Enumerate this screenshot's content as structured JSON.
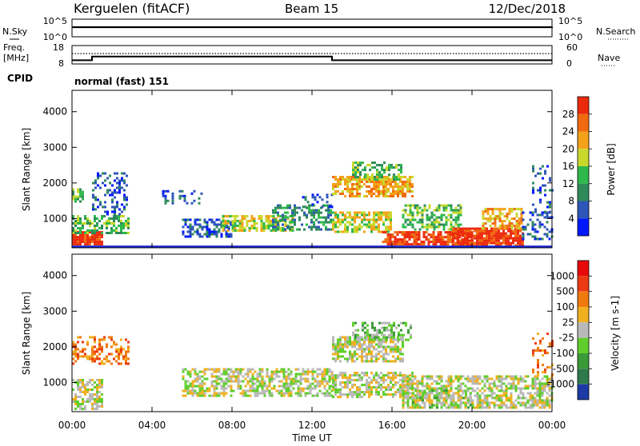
{
  "header": {
    "station": "Kerguelen (fitACF)",
    "beam": "Beam 15",
    "date": "12/Dec/2018"
  },
  "noise_panel": {
    "left_label": "N.Sky",
    "right_label": "N.Search",
    "left_ticks": [
      "10^5",
      "10^0"
    ],
    "right_ticks": [
      "10^5",
      "10^0"
    ]
  },
  "freq_panel": {
    "left_label_1": "Freq.",
    "left_label_2": "[MHz]",
    "right_label": "Nave",
    "left_ticks": [
      "18",
      "8"
    ],
    "right_ticks": [
      "60",
      "0"
    ],
    "freq_series": [
      {
        "t": 0,
        "v": 10
      },
      {
        "t": 1,
        "v": 10
      },
      {
        "t": 1,
        "v": 12
      },
      {
        "t": 13,
        "v": 12
      },
      {
        "t": 13,
        "v": 10
      },
      {
        "t": 24,
        "v": 10
      }
    ]
  },
  "cpid": {
    "label": "CPID",
    "mode": "normal (fast) 151"
  },
  "chart_data": [
    {
      "type": "heatmap",
      "name": "Power",
      "ylabel": "Slant Range [km]",
      "xlabel": "Time UT",
      "ylim": [
        180,
        4600
      ],
      "xlim": [
        0,
        24
      ],
      "y_ticks": [
        "1000",
        "2000",
        "3000",
        "4000"
      ],
      "colorbar_label": "Power [dB]",
      "colorbar_ticks": [
        "28",
        "24",
        "20",
        "16",
        "12",
        "8",
        "4"
      ],
      "colorbar_colors": [
        "#0018ff",
        "#2e55b8",
        "#2f8a5a",
        "#2fb84c",
        "#c8d92c",
        "#f5a21b",
        "#f06a10",
        "#ec2a0c"
      ],
      "regions": [
        {
          "t0": 0.0,
          "t1": 1.5,
          "r0": 250,
          "r1": 650,
          "level": 7,
          "density": 0.9
        },
        {
          "t0": 0.0,
          "t1": 2.8,
          "r0": 600,
          "r1": 1100,
          "level": 3,
          "density": 0.6
        },
        {
          "t0": 0.0,
          "t1": 0.6,
          "r0": 1500,
          "r1": 1850,
          "level": 3,
          "density": 0.6
        },
        {
          "t0": 1.0,
          "t1": 2.8,
          "r0": 1100,
          "r1": 2300,
          "level": 1,
          "density": 0.35
        },
        {
          "t0": 4.5,
          "t1": 6.5,
          "r0": 1400,
          "r1": 1800,
          "level": 1,
          "density": 0.3
        },
        {
          "t0": 5.5,
          "t1": 8.0,
          "r0": 500,
          "r1": 1000,
          "level": 1,
          "density": 0.55
        },
        {
          "t0": 7.5,
          "t1": 11.0,
          "r0": 650,
          "r1": 1100,
          "level": 4,
          "density": 0.7
        },
        {
          "t0": 10.0,
          "t1": 13.0,
          "r0": 700,
          "r1": 1400,
          "level": 2,
          "density": 0.5
        },
        {
          "t0": 11.5,
          "t1": 13.0,
          "r0": 1300,
          "r1": 1700,
          "level": 1,
          "density": 0.35
        },
        {
          "t0": 13.0,
          "t1": 16.0,
          "r0": 600,
          "r1": 1200,
          "level": 4,
          "density": 0.7
        },
        {
          "t0": 13.0,
          "t1": 17.0,
          "r0": 1600,
          "r1": 2200,
          "level": 5,
          "density": 0.75
        },
        {
          "t0": 14.0,
          "t1": 16.5,
          "r0": 2100,
          "r1": 2600,
          "level": 3,
          "density": 0.5
        },
        {
          "t0": 16.5,
          "t1": 19.5,
          "r0": 700,
          "r1": 1400,
          "level": 3,
          "density": 0.55
        },
        {
          "t0": 15.5,
          "t1": 20.0,
          "r0": 300,
          "r1": 650,
          "level": 7,
          "density": 0.75
        },
        {
          "t0": 19.0,
          "t1": 22.5,
          "r0": 250,
          "r1": 750,
          "level": 7,
          "density": 0.85
        },
        {
          "t0": 20.5,
          "t1": 22.5,
          "r0": 700,
          "r1": 1300,
          "level": 5,
          "density": 0.6
        },
        {
          "t0": 22.5,
          "t1": 24.0,
          "r0": 400,
          "r1": 1200,
          "level": 1,
          "density": 0.4
        },
        {
          "t0": 23.0,
          "t1": 24.0,
          "r0": 1200,
          "r1": 2500,
          "level": 1,
          "density": 0.2
        }
      ]
    },
    {
      "type": "heatmap",
      "name": "Velocity",
      "ylabel": "Slant Range [km]",
      "xlabel": "Time UT",
      "ylim": [
        180,
        4600
      ],
      "xlim": [
        0,
        24
      ],
      "y_ticks": [
        "1000",
        "2000",
        "3000",
        "4000"
      ],
      "x_ticks": [
        "00:00",
        "04:00",
        "08:00",
        "12:00",
        "16:00",
        "20:00",
        "00:00"
      ],
      "colorbar_label": "Velocity [m s-1]",
      "colorbar_ticks": [
        "1000",
        "500",
        "100",
        "25",
        "-25",
        "-100",
        "-500",
        "-1000"
      ],
      "colorbar_colors": [
        "#1d3aa6",
        "#2f7a4a",
        "#3a9a38",
        "#5fce2c",
        "#b9b9b9",
        "#f0b020",
        "#f07a10",
        "#ec3a12",
        "#e80a0a"
      ],
      "regions": [
        {
          "t0": 0.0,
          "t1": 1.5,
          "r0": 250,
          "r1": 1100,
          "level": 4,
          "density": 0.6
        },
        {
          "t0": 0.0,
          "t1": 2.8,
          "r0": 1500,
          "r1": 2300,
          "level": 6,
          "density": 0.45
        },
        {
          "t0": 5.5,
          "t1": 13.0,
          "r0": 600,
          "r1": 1400,
          "level": 4,
          "density": 0.6
        },
        {
          "t0": 13.0,
          "t1": 17.0,
          "r0": 600,
          "r1": 1300,
          "level": 4,
          "density": 0.65
        },
        {
          "t0": 13.0,
          "t1": 16.5,
          "r0": 1600,
          "r1": 2300,
          "level": 4,
          "density": 0.7
        },
        {
          "t0": 14.0,
          "t1": 17.0,
          "r0": 2200,
          "r1": 2700,
          "level": 3,
          "density": 0.45
        },
        {
          "t0": 16.5,
          "t1": 24.0,
          "r0": 300,
          "r1": 1200,
          "level": 4,
          "density": 0.65
        },
        {
          "t0": 17.0,
          "t1": 20.0,
          "r0": 300,
          "r1": 800,
          "level": 3,
          "density": 0.25
        },
        {
          "t0": 23.0,
          "t1": 24.0,
          "r0": 1200,
          "r1": 2400,
          "level": 6,
          "density": 0.25
        }
      ]
    }
  ],
  "x_axis": {
    "ticks": [
      "00:00",
      "04:00",
      "08:00",
      "12:00",
      "16:00",
      "20:00",
      "00:00"
    ],
    "label": "Time UT"
  },
  "colors": {
    "ground_scatter_line": "#1a24d8"
  }
}
